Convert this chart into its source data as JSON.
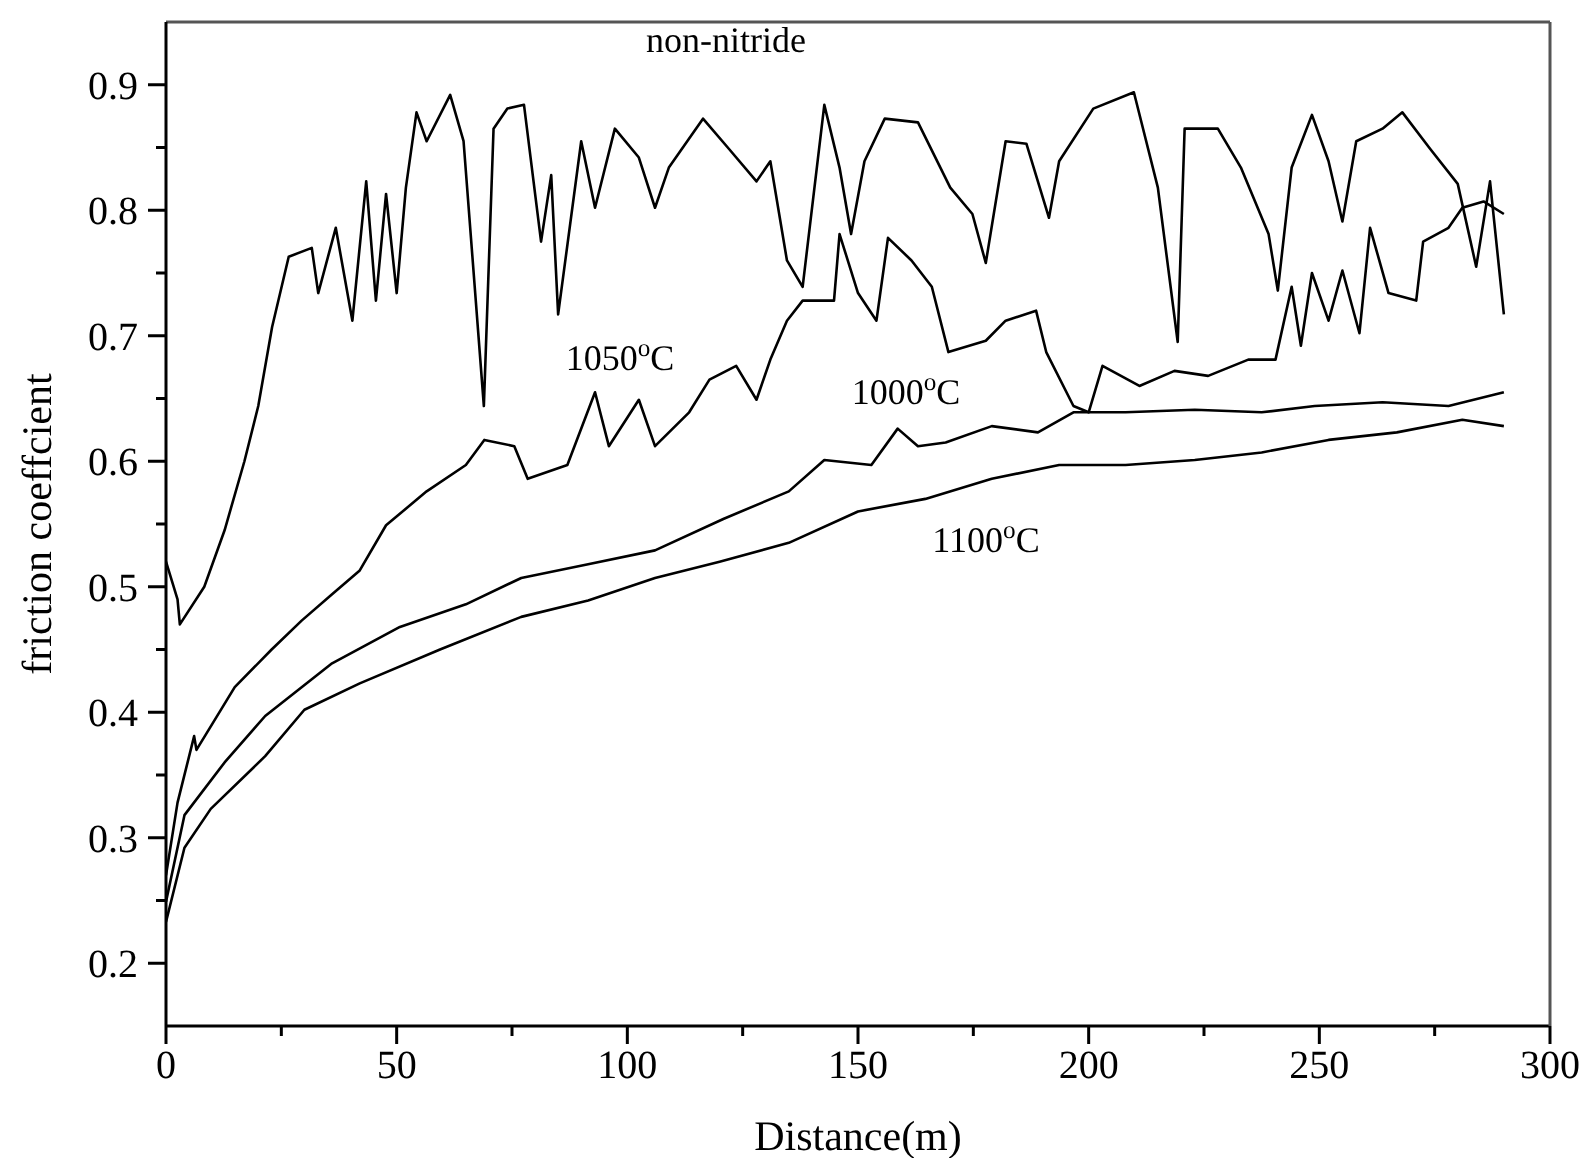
{
  "chart_data": {
    "type": "line",
    "xlabel": "Distance(m)",
    "ylabel": "friction coeffcient",
    "xlim": [
      0,
      300
    ],
    "xticks": [
      0,
      {
        "value": 25,
        "label": null
      },
      50,
      {
        "value": 75,
        "label": null
      },
      100,
      {
        "value": 125,
        "label": null
      },
      150,
      {
        "value": 175,
        "label": null
      },
      200,
      {
        "value": 225,
        "label": null
      },
      250,
      {
        "value": 275,
        "label": null
      },
      300
    ],
    "ylim": [
      0.15,
      0.95
    ],
    "yticks": [
      0.2,
      {
        "value": 0.25,
        "label": null
      },
      0.3,
      {
        "value": 0.35,
        "label": null
      },
      0.4,
      {
        "value": 0.45,
        "label": null
      },
      0.5,
      {
        "value": 0.55,
        "label": null
      },
      0.6,
      {
        "value": 0.65,
        "label": null
      },
      0.7,
      {
        "value": 0.75,
        "label": null
      },
      0.8,
      {
        "value": 0.85,
        "label": null
      },
      0.9
    ],
    "grid": false,
    "legend": false,
    "marker": "none",
    "line_style": "solid",
    "series": [
      {
        "name": "non-nitride",
        "color": "#000000",
        "x": [
          0,
          2.5,
          3,
          8.3,
          12.7,
          17,
          20,
          23,
          26.6,
          31.6,
          33,
          36.8,
          40.4,
          43.4,
          45.5,
          47.7,
          50,
          52,
          54.3,
          56.5,
          61.6,
          64.5,
          68.9,
          71,
          74,
          77.6,
          81.3,
          83.5,
          85,
          90,
          93,
          97.3,
          102.5,
          106,
          109,
          116.4,
          122,
          128,
          131,
          134.6,
          138,
          142.7,
          146,
          148.5,
          151.4,
          155.8,
          163,
          170,
          174.8,
          177.7,
          182,
          186.5,
          191.4,
          193.6,
          201,
          209.8,
          215,
          219.3,
          220.8,
          228,
          233,
          239,
          241,
          244,
          248.4,
          252,
          255,
          258,
          263.7,
          268,
          274,
          280,
          284,
          287,
          290
        ],
        "values": [
          0.52,
          0.49,
          0.47,
          0.5,
          0.545,
          0.6,
          0.644,
          0.707,
          0.763,
          0.77,
          0.734,
          0.786,
          0.712,
          0.823,
          0.728,
          0.813,
          0.734,
          0.818,
          0.878,
          0.855,
          0.892,
          0.855,
          0.644,
          0.865,
          0.881,
          0.884,
          0.775,
          0.828,
          0.717,
          0.855,
          0.802,
          0.865,
          0.842,
          0.802,
          0.834,
          0.873,
          0.849,
          0.823,
          0.839,
          0.76,
          0.739,
          0.884,
          0.834,
          0.781,
          0.839,
          0.873,
          0.87,
          0.818,
          0.797,
          0.758,
          0.855,
          0.853,
          0.794,
          0.839,
          0.881,
          0.894,
          0.818,
          0.695,
          0.865,
          0.865,
          0.834,
          0.781,
          0.736,
          0.834,
          0.876,
          0.839,
          0.791,
          0.855,
          0.865,
          0.878,
          0.849,
          0.821,
          0.755,
          0.823,
          0.717
        ]
      },
      {
        "name": "1050$^{o}$C",
        "color": "#000000",
        "x": [
          0,
          2.5,
          6.1,
          6.6,
          14.9,
          22.9,
          29.4,
          36,
          42,
          47.7,
          56.5,
          65,
          69,
          75.5,
          78.4,
          87,
          93,
          96,
          102.5,
          106,
          113.4,
          117.8,
          123.6,
          128,
          131,
          134.6,
          138,
          144.8,
          146,
          150,
          154,
          156.5,
          161.6,
          166,
          169.6,
          177.7,
          182,
          188.6,
          190.8,
          196.7,
          200,
          203,
          211,
          218.6,
          225.9,
          234.6,
          240.5,
          244,
          246,
          248.4,
          252,
          255,
          258.7,
          261,
          265,
          271,
          272.5,
          278,
          281,
          285.6,
          290
        ],
        "values": [
          0.27,
          0.328,
          0.381,
          0.37,
          0.42,
          0.45,
          0.473,
          0.494,
          0.513,
          0.549,
          0.576,
          0.597,
          0.617,
          0.612,
          0.586,
          0.597,
          0.655,
          0.612,
          0.649,
          0.612,
          0.639,
          0.665,
          0.676,
          0.649,
          0.681,
          0.712,
          0.728,
          0.728,
          0.781,
          0.734,
          0.712,
          0.778,
          0.76,
          0.739,
          0.687,
          0.696,
          0.712,
          0.72,
          0.687,
          0.644,
          0.639,
          0.676,
          0.66,
          0.672,
          0.668,
          0.681,
          0.681,
          0.739,
          0.692,
          0.75,
          0.712,
          0.752,
          0.702,
          0.786,
          0.734,
          0.728,
          0.775,
          0.786,
          0.802,
          0.807,
          0.797
        ]
      },
      {
        "name": "1000$^{o}$C",
        "color": "#000000",
        "x": [
          0,
          4,
          12.7,
          21.5,
          36,
          50.7,
          65,
          77,
          91.5,
          106,
          120.8,
          135,
          142.7,
          152.9,
          158.6,
          163,
          169,
          179,
          189,
          196.7,
          208,
          223,
          237.5,
          249,
          263.7,
          278,
          290
        ],
        "values": [
          0.249,
          0.318,
          0.36,
          0.397,
          0.439,
          0.468,
          0.486,
          0.507,
          0.518,
          0.529,
          0.554,
          0.576,
          0.601,
          0.597,
          0.626,
          0.612,
          0.615,
          0.628,
          0.623,
          0.639,
          0.639,
          0.641,
          0.639,
          0.644,
          0.647,
          0.644,
          0.655
        ]
      },
      {
        "name": "1100$^{o}$C",
        "color": "#000000",
        "x": [
          0,
          4,
          9.7,
          21.5,
          30,
          42,
          59.4,
          77,
          91.5,
          106,
          120,
          135,
          150,
          164.6,
          179,
          193.6,
          208,
          223,
          237.5,
          252,
          266.8,
          281,
          290
        ],
        "values": [
          0.233,
          0.292,
          0.323,
          0.365,
          0.402,
          0.423,
          0.45,
          0.476,
          0.489,
          0.507,
          0.52,
          0.535,
          0.56,
          0.57,
          0.586,
          0.597,
          0.597,
          0.601,
          0.607,
          0.617,
          0.623,
          0.633,
          0.628
        ]
      }
    ]
  }
}
